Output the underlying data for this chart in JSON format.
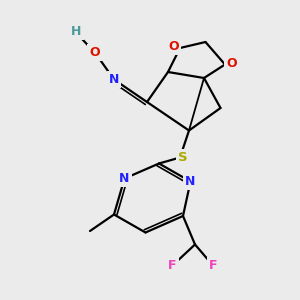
{
  "background_color": "#ebebeb",
  "figsize": [
    3.0,
    3.0
  ],
  "dpi": 100,
  "bond_color": "black",
  "bond_lw": 1.6,
  "atoms": {
    "H_color": "#4a9a9a",
    "O_color": "#dd1100",
    "N_color": "#2222ff",
    "S_color": "#aaaa00",
    "F_color": "#ee44bb",
    "C_color": "black"
  },
  "xlim": [
    0,
    10
  ],
  "ylim": [
    0,
    10
  ]
}
